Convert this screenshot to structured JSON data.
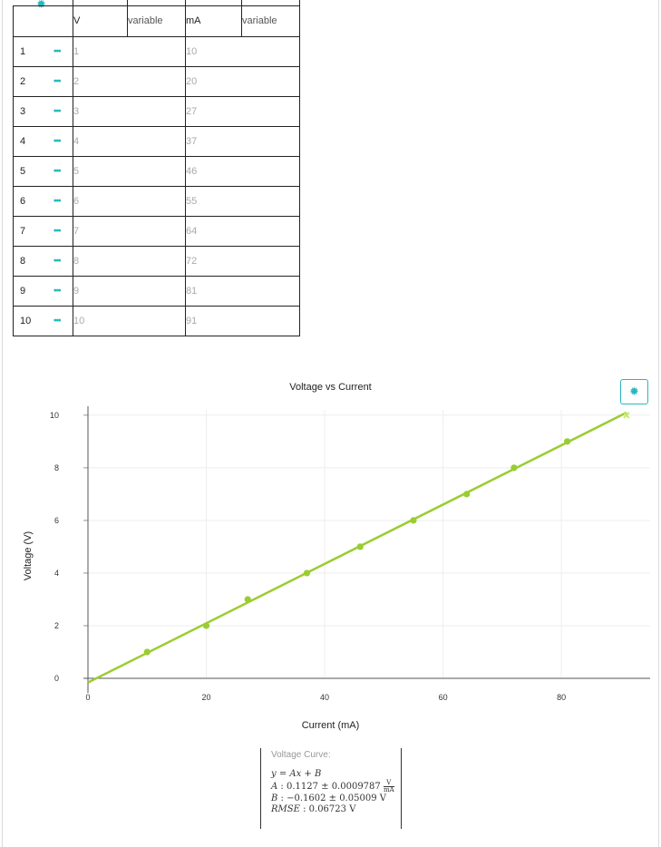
{
  "table": {
    "columns": [
      {
        "name": "V",
        "type": "variable"
      },
      {
        "name": "mA",
        "type": "variable"
      }
    ],
    "rows": [
      {
        "index": "1",
        "v": "1",
        "ma": "10"
      },
      {
        "index": "2",
        "v": "2",
        "ma": "20"
      },
      {
        "index": "3",
        "v": "3",
        "ma": "27"
      },
      {
        "index": "4",
        "v": "4",
        "ma": "37"
      },
      {
        "index": "5",
        "v": "5",
        "ma": "46"
      },
      {
        "index": "6",
        "v": "6",
        "ma": "55"
      },
      {
        "index": "7",
        "v": "7",
        "ma": "64"
      },
      {
        "index": "8",
        "v": "8",
        "ma": "72"
      },
      {
        "index": "9",
        "v": "9",
        "ma": "81"
      },
      {
        "index": "10",
        "v": "10",
        "ma": "91"
      }
    ],
    "row_menu_icon": "ellipsis-icon",
    "settings_icon": "gear-icon"
  },
  "chart_data": {
    "type": "scatter",
    "title": "Voltage vs Current",
    "xlabel": "Current (mA)",
    "ylabel": "Voltage (V)",
    "xlim": [
      0,
      95
    ],
    "ylim": [
      0,
      10.2
    ],
    "x_ticks": [
      0,
      20,
      40,
      60,
      80
    ],
    "y_ticks": [
      0,
      2,
      4,
      6,
      8,
      10
    ],
    "grid": true,
    "series": [
      {
        "x": [
          10,
          20,
          27,
          37,
          46,
          55,
          64,
          72,
          81,
          91
        ],
        "y": [
          1,
          2,
          3,
          4,
          5,
          6,
          7,
          8,
          9,
          10
        ],
        "color": "#9acd32"
      }
    ],
    "fit": {
      "type": "linear",
      "A": 0.1127,
      "B": -0.1602,
      "x_range": [
        0,
        91
      ],
      "color": "#9acd32"
    }
  },
  "fit_box": {
    "title": "Voltage Curve:",
    "equation": "y = Ax + B",
    "a_label": "A",
    "a_value": "0.1127 ± 0.0009787",
    "a_unit_num": "V",
    "a_unit_den": "mA",
    "b_label": "B",
    "b_value": "−0.1602 ± 0.05009",
    "b_unit": "V",
    "rmse_label": "RMSE",
    "rmse_value": "0.06723",
    "rmse_unit": "V"
  },
  "chart_settings_icon": "gear-icon",
  "colors": {
    "accent": "#27b8bf",
    "series": "#9acd32"
  }
}
